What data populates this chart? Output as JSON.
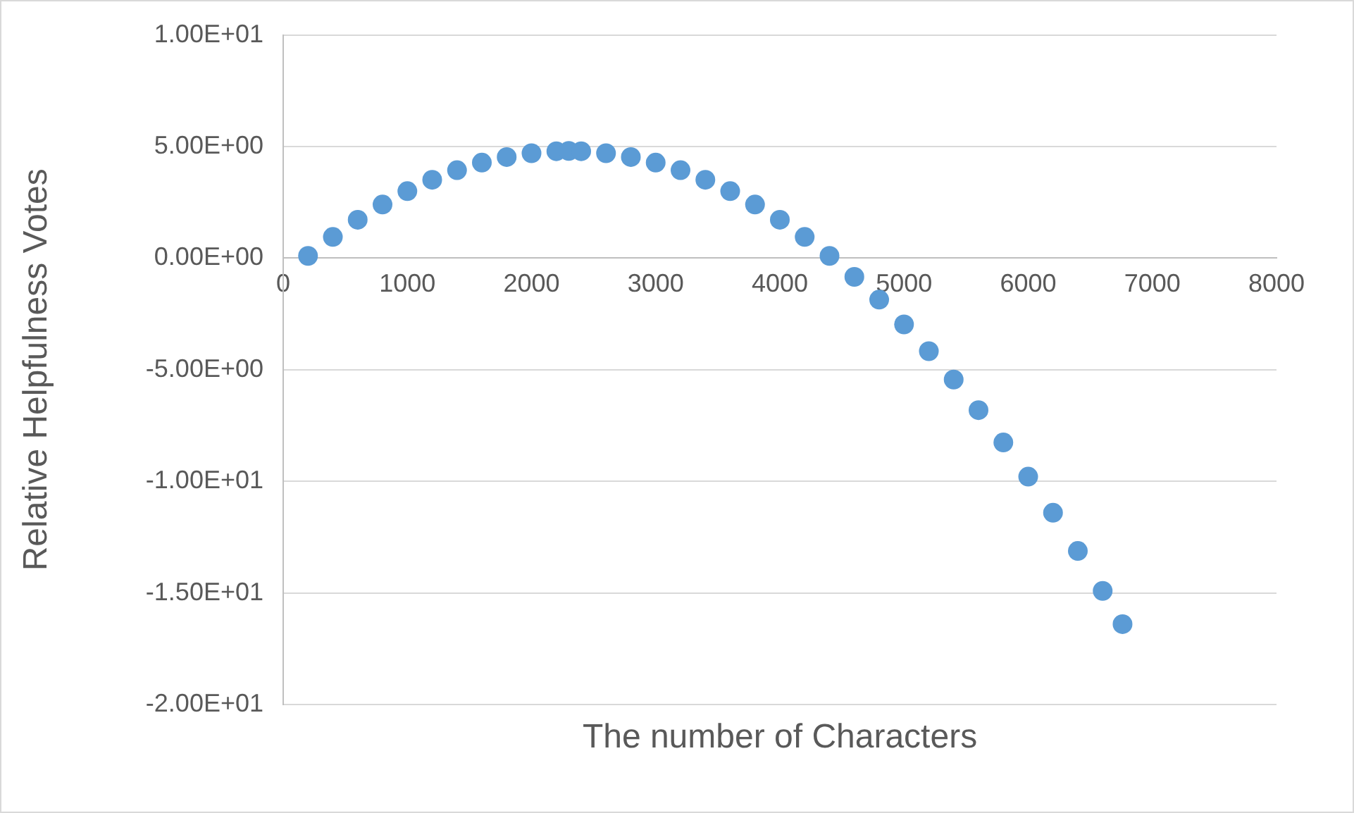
{
  "chart_data": {
    "type": "scatter",
    "xlabel": "The number of Characters",
    "ylabel": "Relative Helpfulness Votes",
    "x": [
      200,
      400,
      600,
      800,
      1000,
      1200,
      1400,
      1600,
      1800,
      2000,
      2200,
      2300,
      2400,
      2600,
      2800,
      3000,
      3200,
      3400,
      3600,
      3800,
      4000,
      4200,
      4400,
      4600,
      4800,
      5000,
      5200,
      5400,
      5600,
      5800,
      6000,
      6200,
      6400,
      6600,
      6760
    ],
    "series": [
      {
        "color": "#5b9bd5",
        "values": [
          0.1,
          0.95,
          1.72,
          2.4,
          3.0,
          3.51,
          3.94,
          4.28,
          4.53,
          4.7,
          4.79,
          4.8,
          4.79,
          4.7,
          4.53,
          4.28,
          3.94,
          3.51,
          3.0,
          2.4,
          1.72,
          0.95,
          0.1,
          -0.84,
          -1.86,
          -2.97,
          -4.17,
          -5.44,
          -6.81,
          -8.26,
          -9.79,
          -11.41,
          -13.12,
          -14.91,
          -16.4
        ]
      }
    ],
    "xlim": [
      0,
      8000
    ],
    "xticks": [
      0,
      1000,
      2000,
      3000,
      4000,
      5000,
      6000,
      7000,
      8000
    ],
    "ylim": [
      -20,
      10
    ],
    "yticks": [
      {
        "value": -20,
        "label": "-2.00E+01"
      },
      {
        "value": -15,
        "label": "-1.50E+01"
      },
      {
        "value": -10,
        "label": "-1.00E+01"
      },
      {
        "value": -5,
        "label": "-5.00E+00"
      },
      {
        "value": 0,
        "label": "0.00E+00"
      },
      {
        "value": 5,
        "label": "5.00E+00"
      },
      {
        "value": 10,
        "label": "1.00E+01"
      }
    ],
    "grid": "y",
    "marker": "circle",
    "legend": false
  }
}
